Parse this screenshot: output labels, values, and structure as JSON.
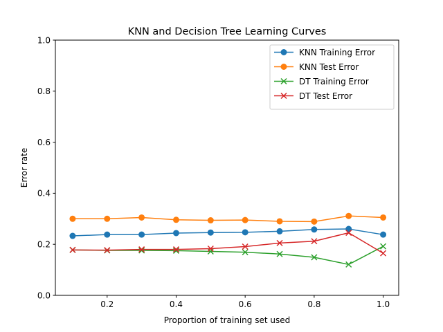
{
  "chart_data": {
    "type": "line",
    "title": "KNN and Decision Tree Learning Curves",
    "xlabel": "Proportion of training set used",
    "ylabel": "Error rate",
    "xlim": [
      0.05,
      1.045
    ],
    "ylim": [
      0.0,
      1.0
    ],
    "xticks": [
      "0.2",
      "0.4",
      "0.6",
      "0.8",
      "1.0"
    ],
    "yticks": [
      "0.0",
      "0.2",
      "0.4",
      "0.6",
      "0.8",
      "1.0"
    ],
    "grid": false,
    "legend_position": "top-right",
    "x": [
      0.1,
      0.2,
      0.3,
      0.4,
      0.5,
      0.6,
      0.7,
      0.8,
      0.9,
      1.0
    ],
    "series": [
      {
        "name": "KNN Training Error",
        "color": "#1f77b4",
        "marker": "circle",
        "values": [
          0.233,
          0.238,
          0.238,
          0.244,
          0.246,
          0.247,
          0.251,
          0.258,
          0.26,
          0.238
        ]
      },
      {
        "name": "KNN Test Error",
        "color": "#ff7f0e",
        "marker": "circle",
        "values": [
          0.3,
          0.3,
          0.305,
          0.296,
          0.294,
          0.295,
          0.29,
          0.289,
          0.311,
          0.305
        ]
      },
      {
        "name": "DT Training Error",
        "color": "#2ca02c",
        "marker": "x",
        "values": [
          0.178,
          0.176,
          0.176,
          0.175,
          0.172,
          0.169,
          0.162,
          0.149,
          0.121,
          0.192
        ]
      },
      {
        "name": "DT Test Error",
        "color": "#d62728",
        "marker": "x",
        "values": [
          0.178,
          0.177,
          0.18,
          0.18,
          0.183,
          0.191,
          0.205,
          0.212,
          0.245,
          0.165
        ]
      }
    ]
  }
}
